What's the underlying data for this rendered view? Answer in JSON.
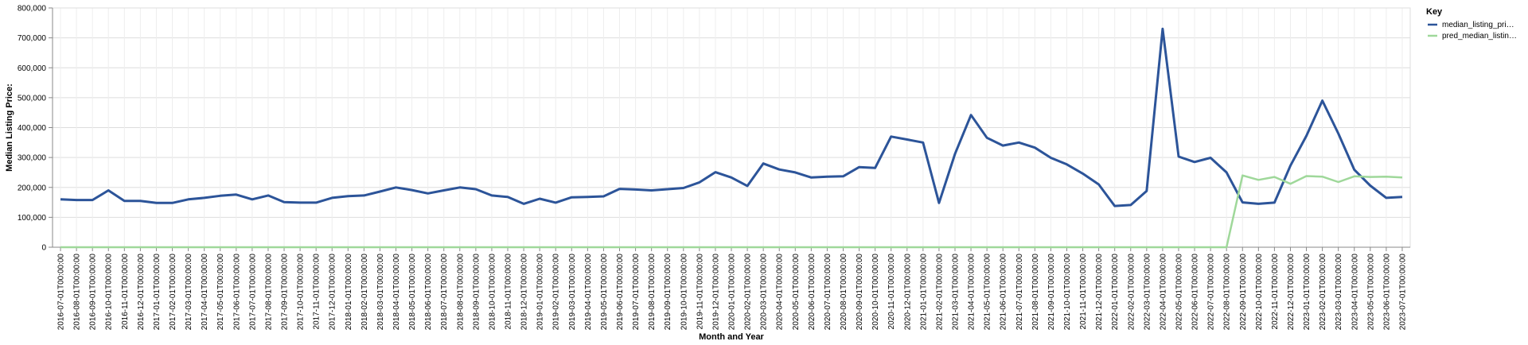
{
  "chart_data": {
    "type": "line",
    "xlabel": "Month and Year",
    "ylabel": "Median Listing Price:",
    "ylim": [
      0,
      800000
    ],
    "yticks": [
      "0",
      "100,000",
      "200,000",
      "300,000",
      "400,000",
      "500,000",
      "600,000",
      "700,000",
      "800,000"
    ],
    "grid": true,
    "legend": {
      "title": "Key",
      "placement": "top-right",
      "entries": [
        "median_listing_pri…",
        "pred_median_listin…"
      ]
    },
    "x": [
      "2016-07-01T00:00:00",
      "2016-08-01T00:00:00",
      "2016-09-01T00:00:00",
      "2016-10-01T00:00:00",
      "2016-11-01T00:00:00",
      "2016-12-01T00:00:00",
      "2017-01-01T00:00:00",
      "2017-02-01T00:00:00",
      "2017-03-01T00:00:00",
      "2017-04-01T00:00:00",
      "2017-05-01T00:00:00",
      "2017-06-01T00:00:00",
      "2017-07-01T00:00:00",
      "2017-08-01T00:00:00",
      "2017-09-01T00:00:00",
      "2017-10-01T00:00:00",
      "2017-11-01T00:00:00",
      "2017-12-01T00:00:00",
      "2018-01-01T00:00:00",
      "2018-02-01T00:00:00",
      "2018-03-01T00:00:00",
      "2018-04-01T00:00:00",
      "2018-05-01T00:00:00",
      "2018-06-01T00:00:00",
      "2018-07-01T00:00:00",
      "2018-08-01T00:00:00",
      "2018-09-01T00:00:00",
      "2018-10-01T00:00:00",
      "2018-11-01T00:00:00",
      "2018-12-01T00:00:00",
      "2019-01-01T00:00:00",
      "2019-02-01T00:00:00",
      "2019-03-01T00:00:00",
      "2019-04-01T00:00:00",
      "2019-05-01T00:00:00",
      "2019-06-01T00:00:00",
      "2019-07-01T00:00:00",
      "2019-08-01T00:00:00",
      "2019-09-01T00:00:00",
      "2019-10-01T00:00:00",
      "2019-11-01T00:00:00",
      "2019-12-01T00:00:00",
      "2020-01-01T00:00:00",
      "2020-02-01T00:00:00",
      "2020-03-01T00:00:00",
      "2020-04-01T00:00:00",
      "2020-05-01T00:00:00",
      "2020-06-01T00:00:00",
      "2020-07-01T00:00:00",
      "2020-08-01T00:00:00",
      "2020-09-01T00:00:00",
      "2020-10-01T00:00:00",
      "2020-11-01T00:00:00",
      "2020-12-01T00:00:00",
      "2021-01-01T00:00:00",
      "2021-02-01T00:00:00",
      "2021-03-01T00:00:00",
      "2021-04-01T00:00:00",
      "2021-05-01T00:00:00",
      "2021-06-01T00:00:00",
      "2021-07-01T00:00:00",
      "2021-08-01T00:00:00",
      "2021-09-01T00:00:00",
      "2021-10-01T00:00:00",
      "2021-11-01T00:00:00",
      "2021-12-01T00:00:00",
      "2022-01-01T00:00:00",
      "2022-02-01T00:00:00",
      "2022-03-01T00:00:00",
      "2022-04-01T00:00:00",
      "2022-05-01T00:00:00",
      "2022-06-01T00:00:00",
      "2022-07-01T00:00:00",
      "2022-08-01T00:00:00",
      "2022-09-01T00:00:00",
      "2022-10-01T00:00:00",
      "2022-11-01T00:00:00",
      "2022-12-01T00:00:00",
      "2023-01-01T00:00:00",
      "2023-02-01T00:00:00",
      "2023-03-01T00:00:00",
      "2023-04-01T00:00:00",
      "2023-05-01T00:00:00",
      "2023-06-01T00:00:00",
      "2023-07-01T00:00:00"
    ],
    "series": [
      {
        "name": "median_listing_pri…",
        "color": "#2c5499",
        "values": [
          160000,
          158000,
          158000,
          190000,
          155000,
          155000,
          148000,
          148000,
          160000,
          165000,
          172000,
          176000,
          160000,
          173000,
          151000,
          149000,
          149000,
          165000,
          171000,
          173000,
          186000,
          200000,
          191000,
          180000,
          190000,
          200000,
          194000,
          173000,
          168000,
          145000,
          162000,
          149000,
          167000,
          168000,
          170000,
          195000,
          193000,
          190000,
          194000,
          198000,
          217000,
          251000,
          233000,
          205000,
          280000,
          260000,
          250000,
          233000,
          236000,
          237000,
          268000,
          265000,
          370000,
          360000,
          350000,
          148000,
          312000,
          442000,
          366000,
          340000,
          350000,
          333000,
          299000,
          277000,
          246000,
          210000,
          138000,
          141000,
          188000,
          730000,
          303000,
          285000,
          299000,
          250000,
          150000,
          145000,
          149000,
          273000,
          372000,
          490000,
          380000,
          259000,
          206000,
          165000,
          168000
        ]
      },
      {
        "name": "pred_median_listin…",
        "color": "#9fd89a",
        "values": [
          0,
          0,
          0,
          0,
          0,
          0,
          0,
          0,
          0,
          0,
          0,
          0,
          0,
          0,
          0,
          0,
          0,
          0,
          0,
          0,
          0,
          0,
          0,
          0,
          0,
          0,
          0,
          0,
          0,
          0,
          0,
          0,
          0,
          0,
          0,
          0,
          0,
          0,
          0,
          0,
          0,
          0,
          0,
          0,
          0,
          0,
          0,
          0,
          0,
          0,
          0,
          0,
          0,
          0,
          0,
          0,
          0,
          0,
          0,
          0,
          0,
          0,
          0,
          0,
          0,
          0,
          0,
          0,
          0,
          0,
          0,
          0,
          0,
          0,
          240000,
          225000,
          235000,
          212000,
          238000,
          236000,
          218000,
          237000,
          235000,
          236000,
          233000
        ]
      }
    ]
  }
}
